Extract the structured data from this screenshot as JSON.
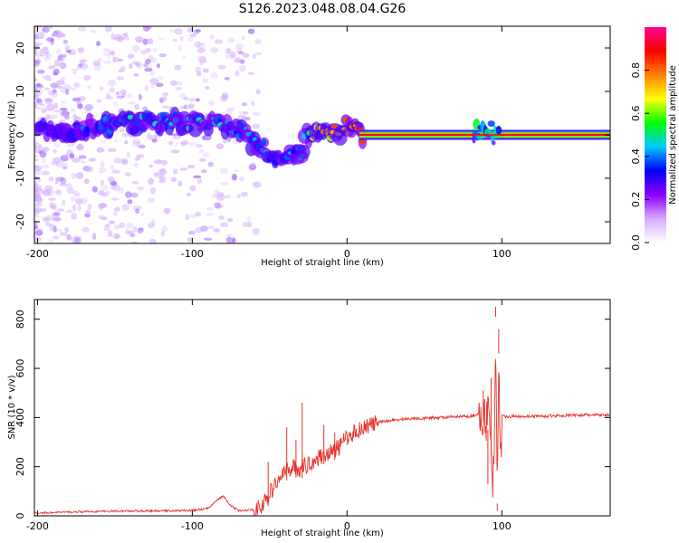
{
  "figure": {
    "title": "S126.2023.048.08.04.G26"
  },
  "chart_data": [
    {
      "type": "heatmap",
      "name": "spectrogram",
      "xlabel": "Height of straight line (km)",
      "ylabel": "Frequency (Hz)",
      "xlim": [
        -202,
        170
      ],
      "ylim": [
        -25,
        25
      ],
      "xticks": [
        -200,
        -100,
        0,
        100
      ],
      "yticks": [
        -20,
        -10,
        0,
        10,
        20
      ],
      "grid": false,
      "colorbar": {
        "label": "Normalized spectral amplitude",
        "range": [
          0,
          1
        ],
        "ticks": [
          "0.0",
          "0.2",
          "0.4",
          "0.6",
          "0.8"
        ],
        "colors": [
          "#ffffff",
          "#d8a8ff",
          "#8a00ff",
          "#0000ff",
          "#00c8ff",
          "#00ff00",
          "#ffff00",
          "#ff8000",
          "#ff0000",
          "#ff0090"
        ]
      },
      "ridge": {
        "height_km": [
          -200,
          -180,
          -160,
          -140,
          -120,
          -100,
          -90,
          -80,
          -70,
          -60,
          -50,
          -45,
          -40,
          -35,
          -30,
          -26,
          -22,
          -18,
          -12,
          -6,
          0,
          5,
          10,
          20,
          40,
          60,
          80,
          85,
          88,
          92,
          95,
          100,
          130,
          170
        ],
        "frequency_hz": [
          1.5,
          1.0,
          2.0,
          2.5,
          3.0,
          3.0,
          2.5,
          2.0,
          1.0,
          -2.0,
          -4.0,
          -5.0,
          -5.0,
          -4.5,
          -5.0,
          0.0,
          -1.0,
          1.0,
          0.0,
          0.5,
          2.0,
          1.0,
          0.0,
          0.0,
          0.0,
          0.0,
          0.0,
          1.0,
          0.5,
          1.0,
          0.0,
          0.0,
          0.0,
          0.0
        ],
        "amplitude": [
          0.3,
          0.35,
          0.4,
          0.45,
          0.45,
          0.45,
          0.45,
          0.45,
          0.4,
          0.4,
          0.4,
          0.35,
          0.35,
          0.4,
          0.45,
          0.55,
          0.65,
          0.7,
          0.75,
          0.8,
          0.8,
          0.85,
          0.95,
          0.95,
          0.95,
          0.95,
          0.95,
          0.55,
          0.5,
          0.55,
          0.9,
          0.95,
          0.95,
          0.95
        ]
      }
    },
    {
      "type": "line",
      "name": "snr",
      "xlabel": "Height of straight line (km)",
      "ylabel": "SNR (10 * v/v)",
      "xlim": [
        -202,
        170
      ],
      "ylim": [
        0,
        880
      ],
      "xticks": [
        -200,
        -100,
        0,
        100
      ],
      "yticks": [
        0,
        200,
        400,
        600,
        800
      ],
      "grid": false,
      "color": "#e8312a",
      "series": [
        {
          "x": [
            -200,
            -180,
            -160,
            -140,
            -120,
            -100,
            -90,
            -85,
            -80,
            -75,
            -70,
            -60,
            -55,
            -50,
            -45,
            -40,
            -35,
            -30,
            -25,
            -20,
            -15,
            -10,
            -5,
            0,
            10,
            20,
            30,
            40,
            60,
            80,
            88,
            92,
            95,
            96,
            97,
            98,
            99,
            100,
            105,
            120,
            150,
            170
          ],
          "y": [
            12,
            15,
            18,
            20,
            20,
            22,
            30,
            60,
            80,
            40,
            20,
            25,
            40,
            90,
            140,
            180,
            200,
            190,
            210,
            230,
            250,
            260,
            280,
            320,
            360,
            380,
            390,
            395,
            400,
            405,
            420,
            380,
            100,
            850,
            60,
            700,
            200,
            405,
            405,
            405,
            410,
            410
          ]
        }
      ],
      "spikes": {
        "x": [
          -51,
          -39,
          -33,
          -29,
          -15,
          -8,
          88,
          91,
          93,
          95,
          96,
          97,
          98,
          99
        ],
        "y": [
          220,
          360,
          310,
          460,
          370,
          340,
          510,
          130,
          560,
          60,
          850,
          50,
          760,
          160
        ]
      }
    }
  ]
}
